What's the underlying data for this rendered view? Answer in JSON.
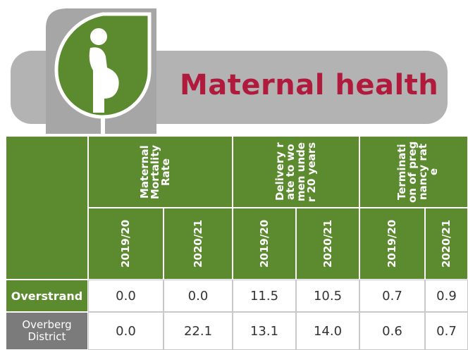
{
  "header": {
    "title": "Maternal health"
  },
  "table": {
    "groups": [
      "Maternal Mortality Rate",
      "Delivery rate to women under 20 years",
      "Termination of pregnancy rate"
    ],
    "years": [
      "2019/20",
      "2020/21",
      "2019/20",
      "2020/21",
      "2019/20",
      "2020/21"
    ],
    "rows": [
      {
        "label": "Overstrand",
        "values": [
          "0.0",
          "0.0",
          "11.5",
          "10.5",
          "0.7",
          "0.9"
        ]
      },
      {
        "label": "Overberg District",
        "values": [
          "0.0",
          "22.1",
          "13.1",
          "14.0",
          "0.6",
          "0.7"
        ]
      }
    ]
  }
}
